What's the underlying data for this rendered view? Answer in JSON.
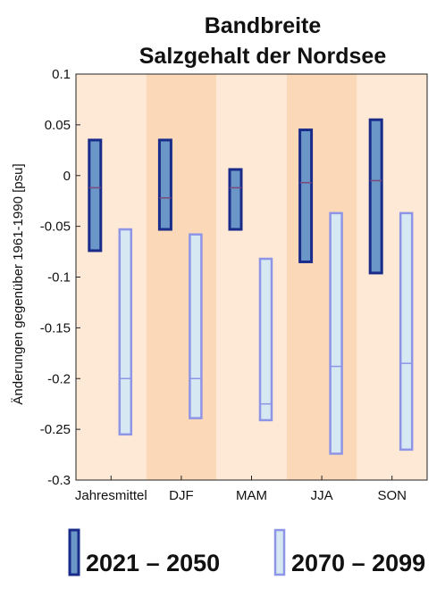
{
  "chart_data": {
    "type": "box-range",
    "title_lines": [
      "Bandbreite",
      "Salzgehalt der Nordsee"
    ],
    "ylabel": "Änderungen gegenüber 1961-1990 [psu]",
    "xlabel": "",
    "ylim": [
      -0.3,
      0.1
    ],
    "yticks": [
      0.1,
      0.05,
      0,
      -0.05,
      -0.1,
      -0.15,
      -0.2,
      -0.25,
      -0.3
    ],
    "ytick_labels": [
      "0.1",
      "0.05",
      "0",
      "-0.05",
      "-0.1",
      "-0.15",
      "-0.2",
      "-0.25",
      "-0.3"
    ],
    "categories": [
      "Jahresmittel",
      "DJF",
      "MAM",
      "JJA",
      "SON"
    ],
    "series": [
      {
        "name": "2021 – 2050",
        "ranges": [
          {
            "min": -0.074,
            "max": 0.035,
            "median": -0.012
          },
          {
            "min": -0.053,
            "max": 0.035,
            "median": -0.022
          },
          {
            "min": -0.053,
            "max": 0.006,
            "median": -0.012
          },
          {
            "min": -0.085,
            "max": 0.045,
            "median": -0.007
          },
          {
            "min": -0.096,
            "max": 0.055,
            "median": -0.005
          }
        ],
        "fill": "#6a96c8",
        "stroke": "#1a2c8a"
      },
      {
        "name": "2070 – 2099",
        "ranges": [
          {
            "min": -0.255,
            "max": -0.053,
            "median": -0.2
          },
          {
            "min": -0.239,
            "max": -0.058,
            "median": -0.2
          },
          {
            "min": -0.241,
            "max": -0.082,
            "median": -0.225
          },
          {
            "min": -0.274,
            "max": -0.037,
            "median": -0.188
          },
          {
            "min": -0.27,
            "max": -0.037,
            "median": -0.185
          }
        ],
        "fill": "#d6e8f2",
        "stroke": "#8f95e6"
      }
    ],
    "band_colors": [
      "#fde9d6",
      "#fbd9b8",
      "#fde9d6",
      "#fbd9b8",
      "#fde9d6"
    ],
    "grid": false,
    "legend_position": "bottom"
  }
}
